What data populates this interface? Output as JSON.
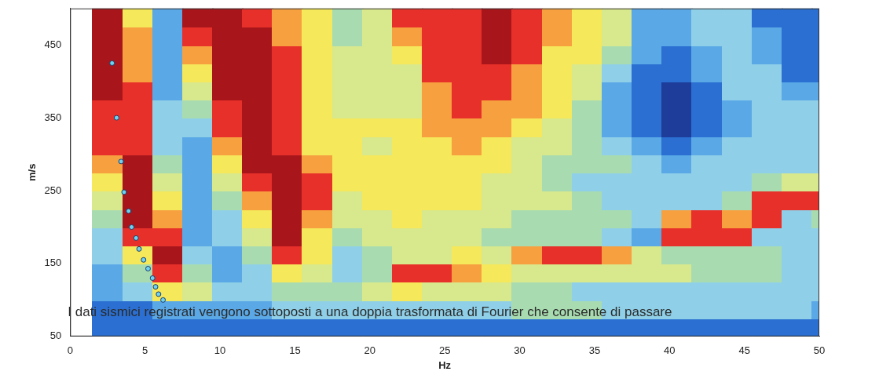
{
  "chart_data": {
    "type": "heatmap",
    "x_label": "Hz",
    "y_label": "m/s",
    "xlim": [
      0,
      50
    ],
    "ylim": [
      50,
      500
    ],
    "xticks": [
      0,
      5,
      10,
      15,
      20,
      25,
      30,
      35,
      40,
      45,
      50
    ],
    "yticks": [
      50,
      150,
      250,
      350,
      450
    ],
    "grid": false,
    "heatmap": {
      "x_edges": [
        1.5,
        3.5,
        5.5,
        7.5,
        9.5,
        11.5,
        13.5,
        15.5,
        17.5,
        19.5,
        21.5,
        23.5,
        25.5,
        27.5,
        29.5,
        31.5,
        33.5,
        35.5,
        37.5,
        39.5,
        41.5,
        43.5,
        45.5,
        47.5,
        49.5,
        50
      ],
      "y_edges": [
        50,
        75,
        100,
        125,
        150,
        175,
        200,
        225,
        250,
        275,
        300,
        325,
        350,
        375,
        400,
        425,
        450,
        475,
        500
      ],
      "value_range": [
        0,
        9
      ],
      "values": [
        [
          1,
          1,
          1,
          1,
          1,
          1,
          1,
          1,
          1,
          1,
          1,
          1,
          1,
          1,
          1,
          1,
          1,
          1,
          1,
          1,
          1,
          1,
          1,
          1,
          1
        ],
        [
          1,
          1,
          2,
          2,
          2,
          2,
          3,
          3,
          3,
          3,
          3,
          3,
          3,
          3,
          4,
          4,
          4,
          3,
          3,
          3,
          3,
          3,
          3,
          3,
          2
        ],
        [
          2,
          3,
          6,
          5,
          3,
          3,
          4,
          4,
          4,
          5,
          6,
          5,
          5,
          5,
          4,
          4,
          3,
          3,
          3,
          3,
          3,
          3,
          3,
          3,
          3
        ],
        [
          2,
          4,
          8,
          4,
          2,
          3,
          6,
          5,
          3,
          4,
          8,
          8,
          7,
          6,
          5,
          5,
          5,
          5,
          5,
          5,
          4,
          4,
          4,
          3,
          3
        ],
        [
          3,
          6,
          9,
          3,
          2,
          4,
          8,
          6,
          3,
          4,
          5,
          5,
          6,
          5,
          7,
          8,
          8,
          7,
          5,
          4,
          4,
          4,
          4,
          3,
          3
        ],
        [
          3,
          8,
          8,
          2,
          3,
          5,
          9,
          6,
          4,
          5,
          5,
          5,
          5,
          4,
          4,
          4,
          4,
          3,
          2,
          8,
          8,
          8,
          3,
          3,
          3
        ],
        [
          4,
          9,
          7,
          2,
          3,
          6,
          9,
          7,
          5,
          5,
          6,
          5,
          5,
          5,
          4,
          4,
          4,
          4,
          3,
          7,
          8,
          7,
          8,
          3,
          4
        ],
        [
          5,
          9,
          6,
          2,
          4,
          7,
          9,
          8,
          5,
          6,
          6,
          6,
          6,
          5,
          5,
          5,
          4,
          3,
          3,
          3,
          3,
          4,
          8,
          8,
          8
        ],
        [
          6,
          9,
          5,
          2,
          5,
          8,
          9,
          8,
          6,
          6,
          6,
          6,
          6,
          5,
          5,
          4,
          3,
          3,
          3,
          3,
          3,
          3,
          4,
          5,
          5
        ],
        [
          7,
          9,
          4,
          2,
          6,
          9,
          9,
          7,
          6,
          6,
          6,
          6,
          6,
          6,
          5,
          4,
          4,
          4,
          3,
          2,
          3,
          3,
          3,
          3,
          3
        ],
        [
          8,
          8,
          3,
          2,
          7,
          9,
          8,
          6,
          6,
          5,
          6,
          6,
          7,
          6,
          5,
          5,
          4,
          3,
          2,
          1,
          2,
          3,
          3,
          3,
          3
        ],
        [
          8,
          8,
          3,
          3,
          8,
          9,
          8,
          6,
          6,
          6,
          6,
          7,
          7,
          7,
          6,
          5,
          4,
          2,
          1,
          0,
          1,
          2,
          3,
          3,
          3
        ],
        [
          8,
          8,
          3,
          4,
          8,
          9,
          8,
          6,
          5,
          5,
          5,
          7,
          8,
          7,
          7,
          6,
          4,
          2,
          1,
          0,
          1,
          2,
          3,
          3,
          3
        ],
        [
          9,
          8,
          2,
          5,
          9,
          9,
          8,
          6,
          5,
          5,
          5,
          7,
          8,
          8,
          7,
          6,
          5,
          2,
          1,
          0,
          1,
          3,
          3,
          2,
          2
        ],
        [
          9,
          7,
          2,
          6,
          9,
          9,
          8,
          6,
          5,
          5,
          5,
          8,
          8,
          8,
          7,
          6,
          5,
          3,
          1,
          1,
          2,
          3,
          3,
          1,
          1
        ],
        [
          9,
          7,
          2,
          7,
          9,
          9,
          8,
          6,
          5,
          5,
          6,
          8,
          8,
          9,
          8,
          6,
          6,
          4,
          2,
          1,
          2,
          3,
          2,
          1,
          1
        ],
        [
          9,
          7,
          2,
          8,
          9,
          9,
          7,
          6,
          4,
          5,
          7,
          8,
          8,
          9,
          8,
          7,
          6,
          5,
          2,
          2,
          3,
          3,
          2,
          1,
          1
        ],
        [
          9,
          6,
          2,
          9,
          9,
          8,
          7,
          6,
          4,
          5,
          8,
          8,
          8,
          9,
          8,
          7,
          6,
          5,
          2,
          2,
          3,
          3,
          1,
          1,
          1
        ]
      ]
    },
    "series": [
      {
        "type": "scatter",
        "color": "#6fd3f0",
        "marker": "circle",
        "x": [
          2.8,
          3.1,
          3.4,
          3.6,
          3.9,
          4.1,
          4.4,
          4.6,
          4.9,
          5.2,
          5.5,
          5.7,
          5.9,
          6.2
        ],
        "y": [
          425,
          350,
          290,
          248,
          222,
          200,
          185,
          170,
          155,
          143,
          130,
          118,
          108,
          100
        ]
      }
    ],
    "annotations": [
      {
        "text": "I dati sismici registrati vengono sottoposti a una doppia trasformata di Fourier che consente di passare"
      }
    ]
  }
}
